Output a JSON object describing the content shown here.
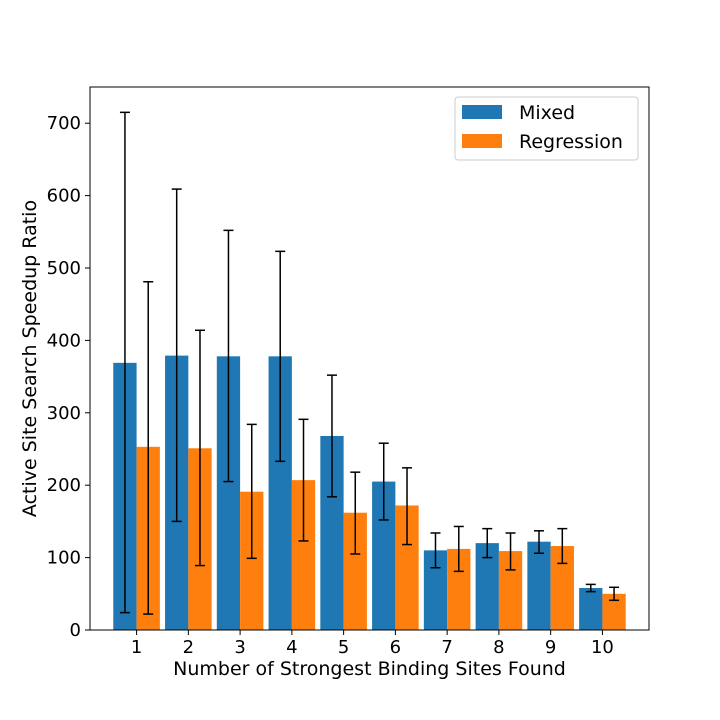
{
  "chart_data": {
    "type": "bar",
    "xlabel": "Number of Strongest Binding Sites Found",
    "ylabel": "Active Site Search Speedup Ratio",
    "categories": [
      "1",
      "2",
      "3",
      "4",
      "5",
      "6",
      "7",
      "8",
      "9",
      "10"
    ],
    "ylim": [
      0,
      750
    ],
    "yticks": [
      0,
      100,
      200,
      300,
      400,
      500,
      600,
      700
    ],
    "grid": false,
    "legend_position": "top-right",
    "series": [
      {
        "name": "Mixed",
        "color": "#1f77b4",
        "values": [
          369,
          379,
          378,
          378,
          268,
          205,
          110,
          120,
          122,
          58
        ],
        "error_low": [
          24,
          150,
          205,
          233,
          184,
          152,
          86,
          100,
          106,
          53
        ],
        "error_high": [
          715,
          609,
          552,
          523,
          352,
          258,
          134,
          140,
          137,
          63
        ]
      },
      {
        "name": "Regression",
        "color": "#ff7f0e",
        "values": [
          253,
          251,
          191,
          207,
          162,
          172,
          112,
          109,
          116,
          50
        ],
        "error_low": [
          22,
          89,
          99,
          123,
          105,
          118,
          81,
          83,
          92,
          41
        ],
        "error_high": [
          481,
          414,
          284,
          291,
          218,
          224,
          143,
          134,
          140,
          59
        ]
      }
    ]
  }
}
